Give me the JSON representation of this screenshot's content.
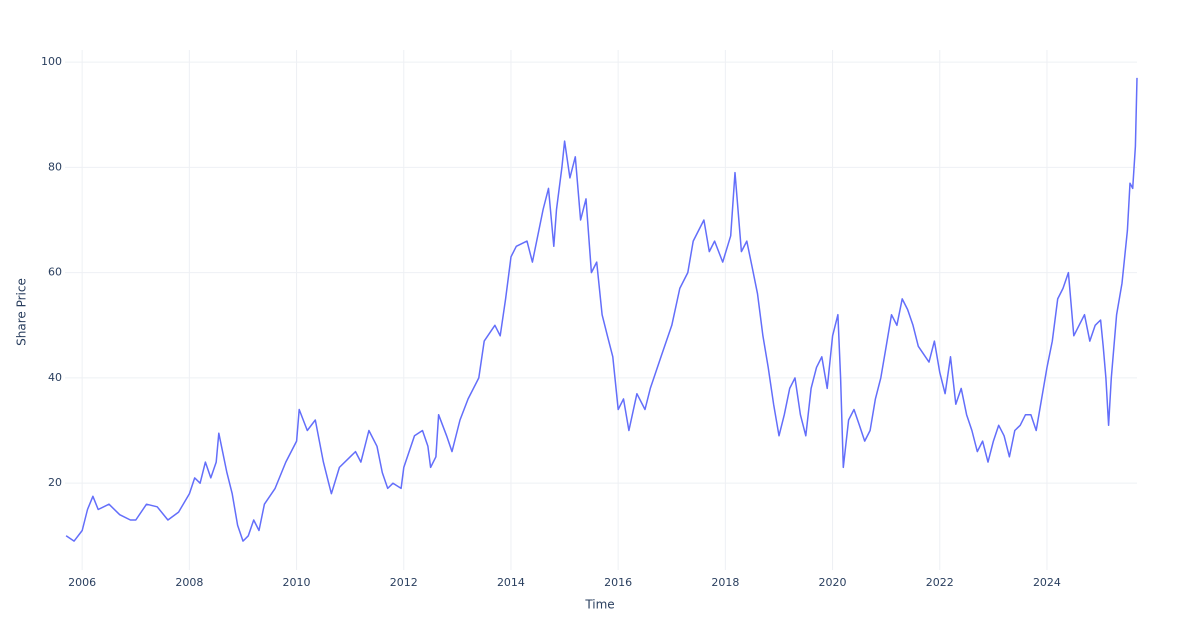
{
  "chart_data": {
    "type": "line",
    "xlabel": "Time",
    "ylabel": "Share Price",
    "color": "#636efa",
    "grid": true,
    "xlim": [
      2005.68,
      2025.68
    ],
    "xticks": [
      2006,
      2008,
      2010,
      2012,
      2014,
      2016,
      2018,
      2020,
      2022,
      2024
    ],
    "ylim": [
      3.5,
      102.3
    ],
    "yticks": [
      20,
      40,
      60,
      80,
      100
    ],
    "x": [
      2005.7,
      2005.85,
      2006.0,
      2006.1,
      2006.2,
      2006.3,
      2006.5,
      2006.7,
      2006.9,
      2007.0,
      2007.2,
      2007.4,
      2007.6,
      2007.8,
      2008.0,
      2008.1,
      2008.2,
      2008.3,
      2008.4,
      2008.5,
      2008.55,
      2008.7,
      2008.8,
      2008.9,
      2009.0,
      2009.1,
      2009.2,
      2009.3,
      2009.4,
      2009.6,
      2009.8,
      2010.0,
      2010.05,
      2010.2,
      2010.35,
      2010.5,
      2010.6,
      2010.65,
      2010.8,
      2011.0,
      2011.1,
      2011.2,
      2011.35,
      2011.5,
      2011.6,
      2011.7,
      2011.8,
      2011.95,
      2012.0,
      2012.2,
      2012.35,
      2012.45,
      2012.5,
      2012.6,
      2012.65,
      2012.8,
      2012.9,
      2013.05,
      2013.2,
      2013.4,
      2013.5,
      2013.7,
      2013.8,
      2013.9,
      2014.0,
      2014.1,
      2014.3,
      2014.4,
      2014.6,
      2014.7,
      2014.8,
      2014.85,
      2014.95,
      2015.0,
      2015.1,
      2015.2,
      2015.3,
      2015.4,
      2015.5,
      2015.6,
      2015.7,
      2015.8,
      2015.9,
      2016.0,
      2016.1,
      2016.2,
      2016.35,
      2016.5,
      2016.6,
      2016.8,
      2017.0,
      2017.15,
      2017.3,
      2017.4,
      2017.6,
      2017.7,
      2017.8,
      2017.95,
      2018.1,
      2018.18,
      2018.3,
      2018.4,
      2018.5,
      2018.6,
      2018.7,
      2018.8,
      2018.9,
      2019.0,
      2019.1,
      2019.2,
      2019.3,
      2019.4,
      2019.5,
      2019.6,
      2019.7,
      2019.8,
      2019.9,
      2020.0,
      2020.1,
      2020.15,
      2020.2,
      2020.3,
      2020.4,
      2020.5,
      2020.6,
      2020.7,
      2020.8,
      2020.9,
      2021.0,
      2021.1,
      2021.2,
      2021.3,
      2021.4,
      2021.5,
      2021.6,
      2021.8,
      2021.9,
      2022.0,
      2022.1,
      2022.2,
      2022.3,
      2022.4,
      2022.5,
      2022.6,
      2022.7,
      2022.8,
      2022.9,
      2023.0,
      2023.1,
      2023.2,
      2023.3,
      2023.4,
      2023.5,
      2023.6,
      2023.7,
      2023.8,
      2023.9,
      2024.0,
      2024.1,
      2024.2,
      2024.3,
      2024.4,
      2024.5,
      2024.6,
      2024.7,
      2024.8,
      2024.9,
      2025.0,
      2025.05,
      2025.1,
      2025.15,
      2025.2,
      2025.3,
      2025.4,
      2025.5,
      2025.55,
      2025.6,
      2025.65,
      2025.68
    ],
    "values": [
      10,
      9,
      11,
      15,
      17.5,
      15,
      16,
      14,
      13,
      13,
      16,
      15.5,
      13,
      14.5,
      18,
      21,
      20,
      24,
      21,
      24,
      29.5,
      22,
      18,
      12,
      9,
      10,
      13,
      11,
      16,
      19,
      24,
      28,
      34,
      30,
      32,
      24,
      20,
      18,
      23,
      25,
      26,
      24,
      30,
      27,
      22,
      19,
      20,
      19,
      23,
      29,
      30,
      27,
      23,
      25,
      33,
      29,
      26,
      32,
      36,
      40,
      47,
      50,
      48,
      55,
      63,
      65,
      66,
      62,
      72,
      76,
      65,
      72,
      80,
      85,
      78,
      82,
      70,
      74,
      60,
      62,
      52,
      48,
      44,
      34,
      36,
      30,
      37,
      34,
      38,
      44,
      50,
      57,
      60,
      66,
      70,
      64,
      66,
      62,
      67,
      79,
      64,
      66,
      61,
      56,
      48,
      42,
      35,
      29,
      33,
      38,
      40,
      33,
      29,
      38,
      42,
      44,
      38,
      48,
      52,
      40,
      23,
      32,
      34,
      31,
      28,
      30,
      36,
      40,
      46,
      52,
      50,
      55,
      53,
      50,
      46,
      43,
      47,
      41,
      37,
      44,
      35,
      38,
      33,
      30,
      26,
      28,
      24,
      28,
      31,
      29,
      25,
      30,
      31,
      33,
      33,
      30,
      36,
      42,
      47,
      55,
      57,
      60,
      48,
      50,
      52,
      47,
      50,
      51,
      46,
      40,
      31,
      40,
      52,
      58,
      68,
      77,
      76,
      84,
      97
    ]
  }
}
